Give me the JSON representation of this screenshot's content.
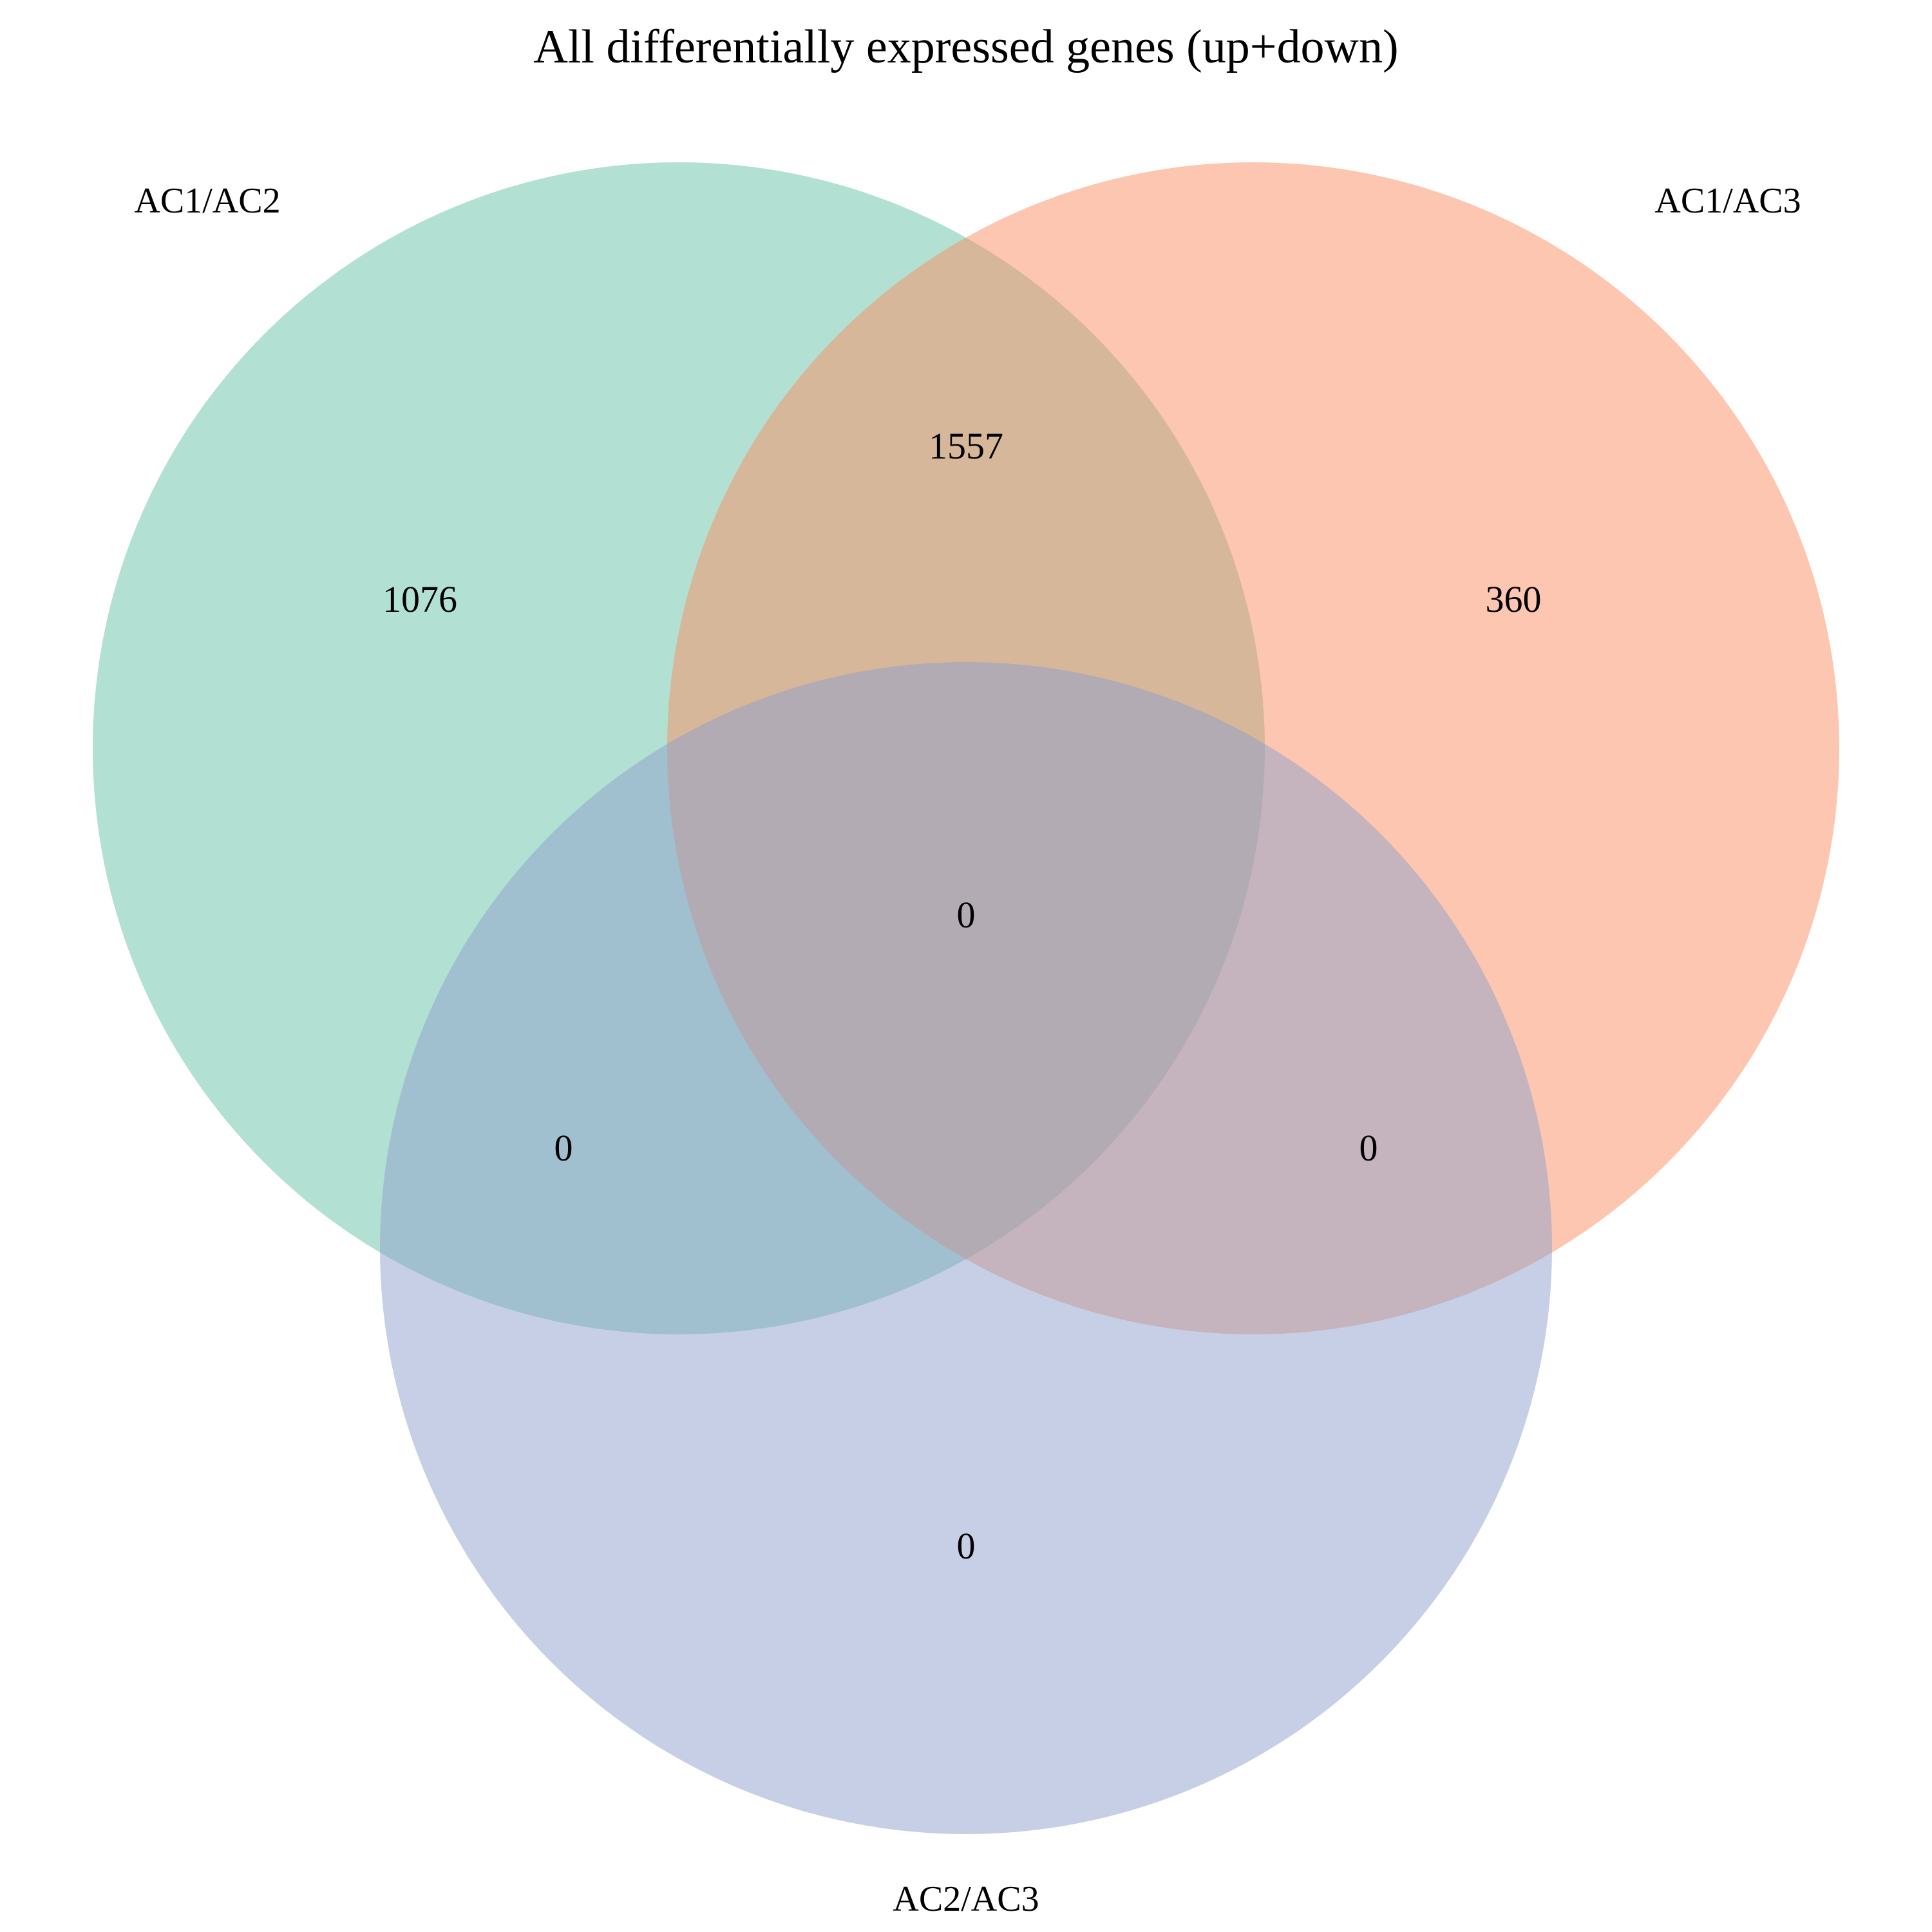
{
  "title": "All differentially expressed genes (up+down)",
  "sets": [
    {
      "name": "AC1/AC2",
      "color": "#66c2a5"
    },
    {
      "name": "AC1/AC3",
      "color": "#fc8d62"
    },
    {
      "name": "AC2/AC3",
      "color": "#8da0cb"
    }
  ],
  "regions": {
    "only_AC1_AC2": "1076",
    "only_AC1_AC3": "360",
    "AC1_AC2_and_AC1_AC3": "1557",
    "all_three": "0",
    "AC1_AC2_and_AC2_AC3": "0",
    "AC1_AC3_and_AC2_AC3": "0",
    "only_AC2_AC3": "0"
  }
}
